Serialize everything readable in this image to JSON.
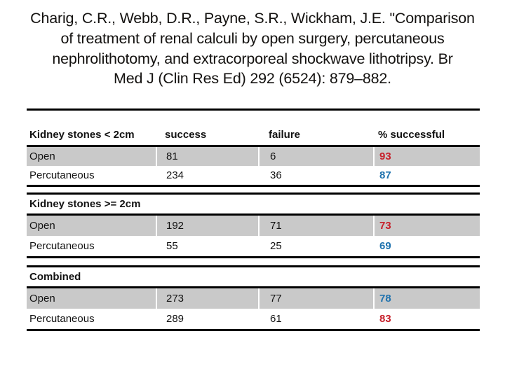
{
  "title": {
    "lines": [
      "Charig, C.R., Webb, D.R., Payne, S.R., Wickham, J.E. \"Comparison",
      "of treatment of renal calculi by open surgery, percutaneous",
      "nephrolithotomy, and extracorporeal shockwave lithotripsy. Br",
      "Med J (Clin Res Ed) 292 (6524): 879–882."
    ]
  },
  "colors": {
    "highlight_red": "#c7202b",
    "highlight_blue": "#1f72ae",
    "row_gray": "#c9c9c9",
    "rule_black": "#000000"
  },
  "table": {
    "columns": [
      "Kidney stones < 2cm",
      "success",
      "failure",
      "% successful"
    ],
    "sections": [
      {
        "header": "Kidney stones < 2cm",
        "rows": [
          {
            "label": "Open",
            "success": "81",
            "failure": "6",
            "pct": "93",
            "pct_color": "#c7202b"
          },
          {
            "label": "Percutaneous",
            "success": "234",
            "failure": "36",
            "pct": "87",
            "pct_color": "#1f72ae"
          }
        ]
      },
      {
        "header": "Kidney stones >= 2cm",
        "rows": [
          {
            "label": "Open",
            "success": "192",
            "failure": "71",
            "pct": "73",
            "pct_color": "#c7202b"
          },
          {
            "label": "Percutaneous",
            "success": "55",
            "failure": "25",
            "pct": "69",
            "pct_color": "#1f72ae"
          }
        ]
      },
      {
        "header": "Combined",
        "rows": [
          {
            "label": "Open",
            "success": "273",
            "failure": "77",
            "pct": "78",
            "pct_color": "#1f72ae"
          },
          {
            "label": "Percutaneous",
            "success": "289",
            "failure": "61",
            "pct": "83",
            "pct_color": "#c7202b"
          }
        ]
      }
    ]
  }
}
